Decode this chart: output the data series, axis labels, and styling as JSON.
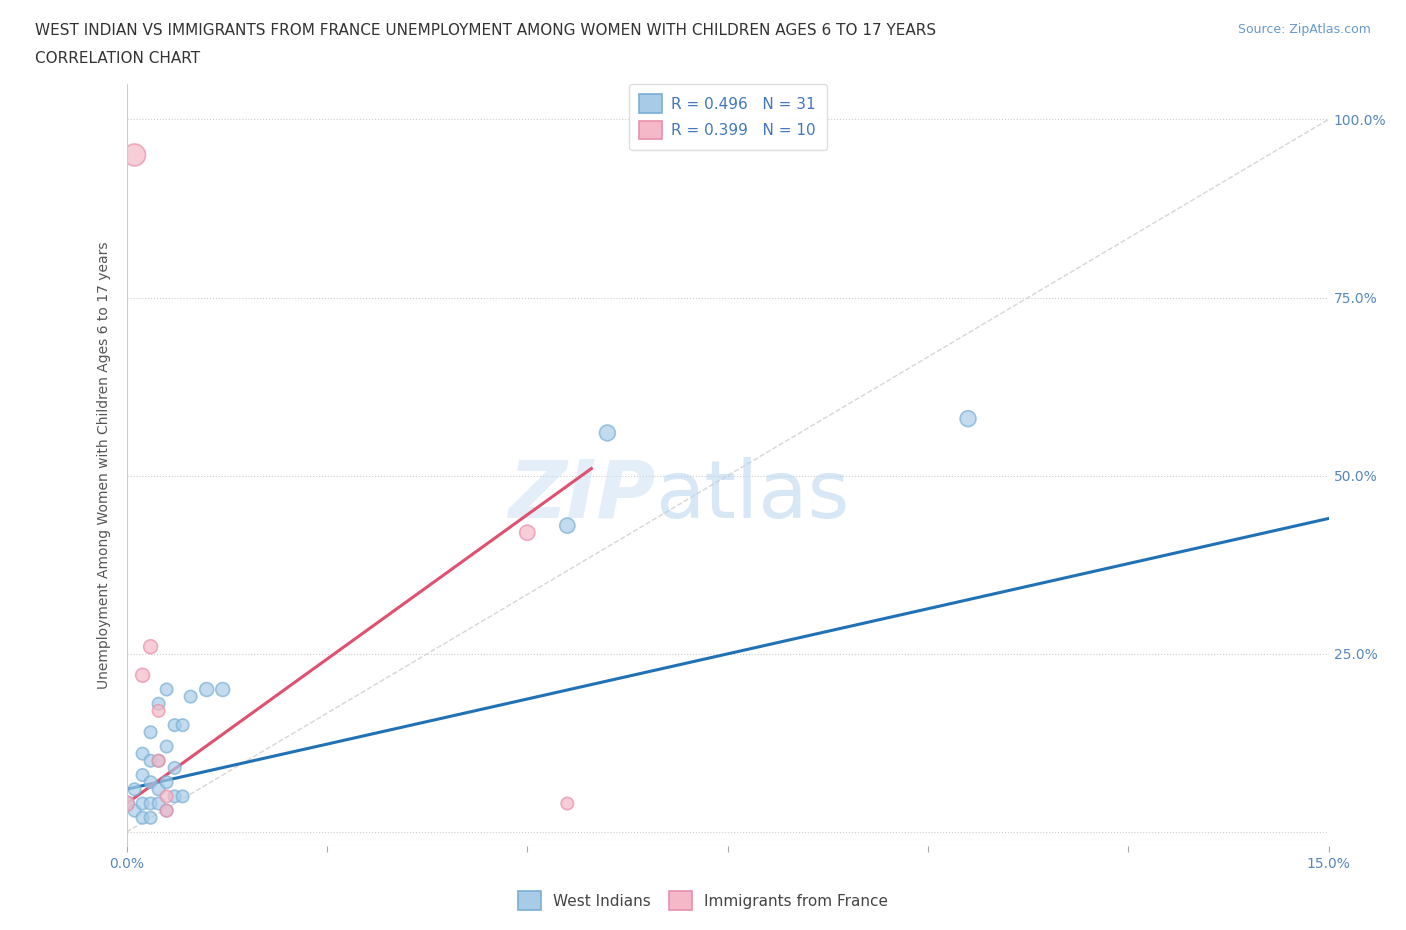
{
  "title_line1": "WEST INDIAN VS IMMIGRANTS FROM FRANCE UNEMPLOYMENT AMONG WOMEN WITH CHILDREN AGES 6 TO 17 YEARS",
  "title_line2": "CORRELATION CHART",
  "source": "Source: ZipAtlas.com",
  "ylabel": "Unemployment Among Women with Children Ages 6 to 17 years",
  "xlim": [
    0,
    0.15
  ],
  "ylim": [
    0.0,
    1.05
  ],
  "yticks": [
    0.0,
    0.25,
    0.5,
    0.75,
    1.0
  ],
  "xticks": [
    0.0,
    0.025,
    0.05,
    0.075,
    0.1,
    0.125,
    0.15
  ],
  "west_indian_R": 0.496,
  "west_indian_N": 31,
  "france_R": 0.399,
  "france_N": 10,
  "blue_color": "#a8cce8",
  "pink_color": "#f4b8c8",
  "blue_edge_color": "#7aafd4",
  "pink_edge_color": "#e890aa",
  "blue_line_color": "#2171b5",
  "pink_line_color": "#e05070",
  "ref_line_color": "#cccccc",
  "west_indians_x": [
    0.0,
    0.001,
    0.001,
    0.002,
    0.002,
    0.002,
    0.002,
    0.003,
    0.003,
    0.003,
    0.003,
    0.003,
    0.004,
    0.004,
    0.004,
    0.004,
    0.005,
    0.005,
    0.005,
    0.005,
    0.006,
    0.006,
    0.006,
    0.007,
    0.007,
    0.008,
    0.01,
    0.012,
    0.055,
    0.06,
    0.105
  ],
  "west_indians_y": [
    0.04,
    0.03,
    0.06,
    0.02,
    0.04,
    0.08,
    0.11,
    0.02,
    0.04,
    0.07,
    0.1,
    0.14,
    0.04,
    0.06,
    0.1,
    0.18,
    0.03,
    0.07,
    0.12,
    0.2,
    0.05,
    0.09,
    0.15,
    0.05,
    0.15,
    0.19,
    0.2,
    0.2,
    0.43,
    0.56,
    0.58
  ],
  "france_x": [
    0.0,
    0.001,
    0.002,
    0.003,
    0.004,
    0.004,
    0.005,
    0.005,
    0.05,
    0.055
  ],
  "france_y": [
    0.04,
    0.95,
    0.22,
    0.26,
    0.1,
    0.17,
    0.05,
    0.03,
    0.42,
    0.04
  ],
  "west_indians_sizes": [
    120,
    80,
    80,
    80,
    80,
    80,
    80,
    80,
    80,
    80,
    80,
    80,
    80,
    80,
    80,
    80,
    80,
    80,
    80,
    80,
    80,
    80,
    80,
    80,
    80,
    80,
    100,
    100,
    120,
    130,
    130
  ],
  "france_sizes": [
    120,
    250,
    100,
    100,
    80,
    80,
    80,
    80,
    120,
    80
  ],
  "blue_trend_x": [
    0.0,
    0.15
  ],
  "blue_trend_y": [
    0.06,
    0.44
  ],
  "pink_trend_x": [
    0.0,
    0.058
  ],
  "pink_trend_y": [
    0.04,
    0.51
  ]
}
